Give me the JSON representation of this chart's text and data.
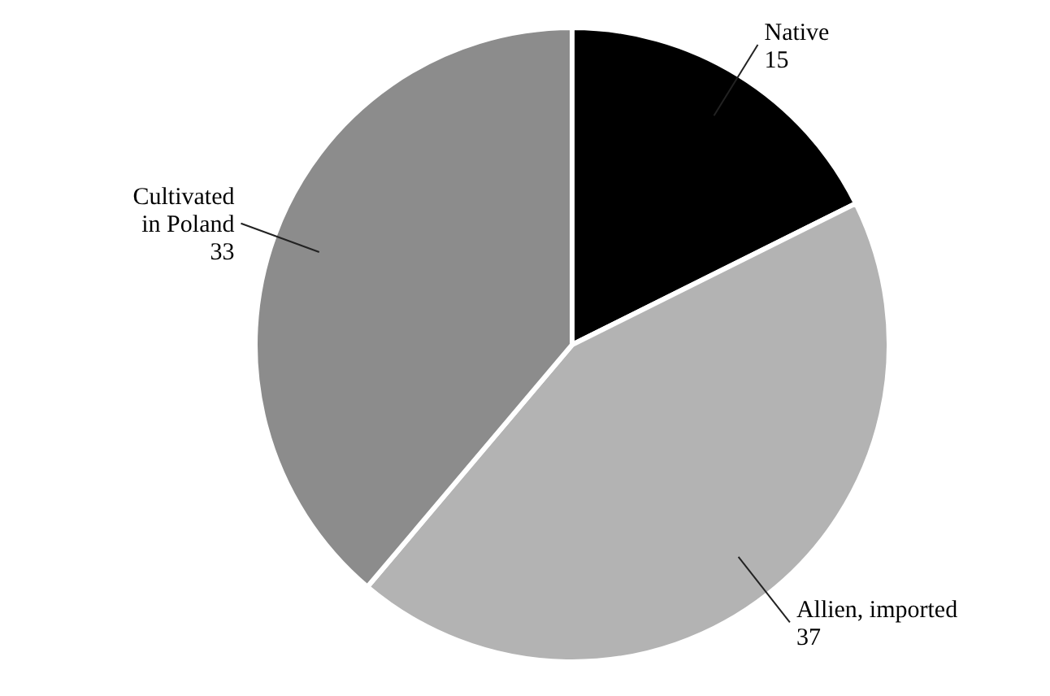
{
  "chart_data": {
    "type": "pie",
    "categories": [
      "Native",
      "Allien, imported",
      "Cultivated in Poland"
    ],
    "values": [
      15,
      37,
      33
    ],
    "colors": [
      "#000000",
      "#b3b3b3",
      "#8c8c8c"
    ],
    "data_labels": true
  }
}
